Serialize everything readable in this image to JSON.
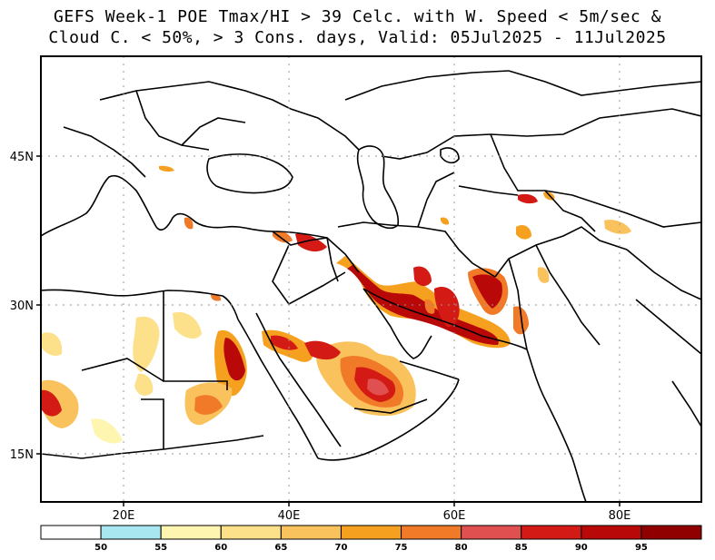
{
  "title": {
    "line1": "GEFS Week-1 POE Tmax/HI > 39 Celc. with W. Speed < 5m/sec &",
    "line2": "Cloud C. < 50%, > 3 Cons. days, Valid: 05Jul2025 - 11Jul2025"
  },
  "map": {
    "lon_labels": [
      "20E",
      "40E",
      "60E",
      "80E"
    ],
    "lat_labels": [
      "45N",
      "30N",
      "15N"
    ]
  },
  "colorbar": {
    "labels": [
      "50",
      "55",
      "60",
      "65",
      "70",
      "75",
      "80",
      "85",
      "90",
      "95"
    ],
    "colors": [
      "#ffffff",
      "#a8e6f0",
      "#fdf5b0",
      "#fde08a",
      "#fac25c",
      "#f6a020",
      "#f07a28",
      "#e05050",
      "#d41a14",
      "#b80808",
      "#900000"
    ]
  }
}
